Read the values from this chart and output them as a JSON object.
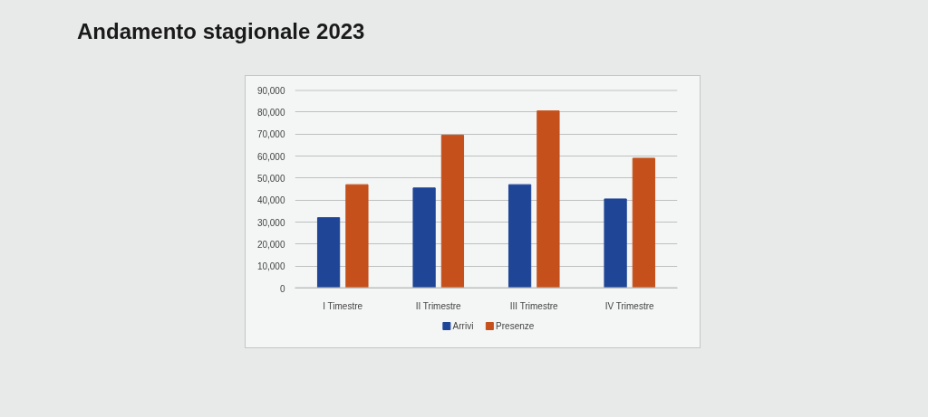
{
  "chart_data": {
    "type": "bar",
    "title": "Andamento stagionale 2023",
    "categories": [
      "I Timestre",
      "II Trimestre",
      "III Trimestre",
      "IV Trimestre"
    ],
    "series": [
      {
        "name": "Arrivi",
        "color": "#1f4597",
        "values": [
          32000,
          45500,
          47000,
          40500
        ]
      },
      {
        "name": "Presenze",
        "color": "#c5501b",
        "values": [
          47000,
          69500,
          80500,
          59000
        ]
      }
    ],
    "ylim": [
      0,
      90000
    ],
    "yticks": [
      0,
      {
        "value": 10000,
        "label": "10,000"
      },
      {
        "value": 20000,
        "label": "20,000"
      },
      {
        "value": 30000,
        "label": "30,000"
      },
      {
        "value": 40000,
        "label": "40,000"
      },
      {
        "value": 50000,
        "label": "50,000"
      },
      {
        "value": 60000,
        "label": "60,000"
      },
      {
        "value": 70000,
        "label": "70,000"
      },
      {
        "value": 80000,
        "label": "80,000"
      },
      {
        "value": 90000,
        "label": "90,000"
      }
    ],
    "grid": "y",
    "legend": "bottom"
  }
}
